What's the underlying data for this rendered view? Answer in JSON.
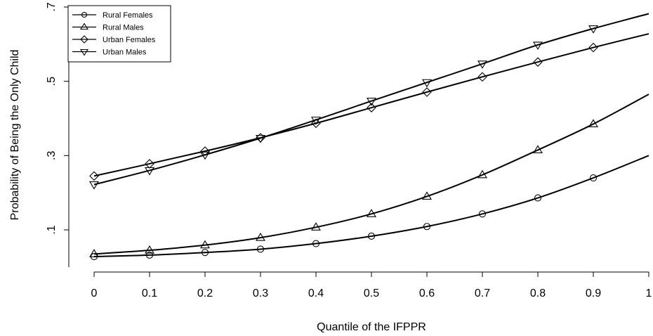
{
  "chart_data": {
    "type": "line",
    "title": "",
    "xlabel": "Quantile of the IFPPR",
    "ylabel": "Probability of Being the Only Child",
    "x": [
      0,
      0.1,
      0.2,
      0.3,
      0.4,
      0.5,
      0.6,
      0.7,
      0.8,
      0.9,
      1
    ],
    "x_tick_labels": [
      "0",
      "0.1",
      "0.2",
      "0.3",
      "0.4",
      "0.5",
      "0.6",
      "0.7",
      "0.8",
      "0.9",
      "1"
    ],
    "y_ticks": [
      0.1,
      0.3,
      0.5,
      0.7
    ],
    "y_tick_labels": [
      ".1",
      ".3",
      ".5",
      ".7"
    ],
    "xlim": [
      0,
      1
    ],
    "ylim": [
      0.0,
      0.7
    ],
    "grid": false,
    "legend_position": "top-left",
    "series": [
      {
        "name": "Rural Females",
        "marker": "circle",
        "values": [
          0.028,
          0.032,
          0.039,
          0.048,
          0.063,
          0.083,
          0.109,
          0.143,
          0.186,
          0.24,
          0.3
        ]
      },
      {
        "name": "Rural Males",
        "marker": "triangle-up",
        "values": [
          0.035,
          0.045,
          0.059,
          0.079,
          0.107,
          0.143,
          0.19,
          0.248,
          0.315,
          0.385,
          0.465
        ]
      },
      {
        "name": "Urban Females",
        "marker": "diamond",
        "values": [
          0.245,
          0.278,
          0.312,
          0.348,
          0.387,
          0.429,
          0.471,
          0.512,
          0.552,
          0.591,
          0.628
        ]
      },
      {
        "name": "Urban Males",
        "marker": "triangle-down",
        "values": [
          0.222,
          0.26,
          0.302,
          0.347,
          0.396,
          0.447,
          0.497,
          0.547,
          0.598,
          0.642,
          0.682
        ]
      }
    ]
  }
}
